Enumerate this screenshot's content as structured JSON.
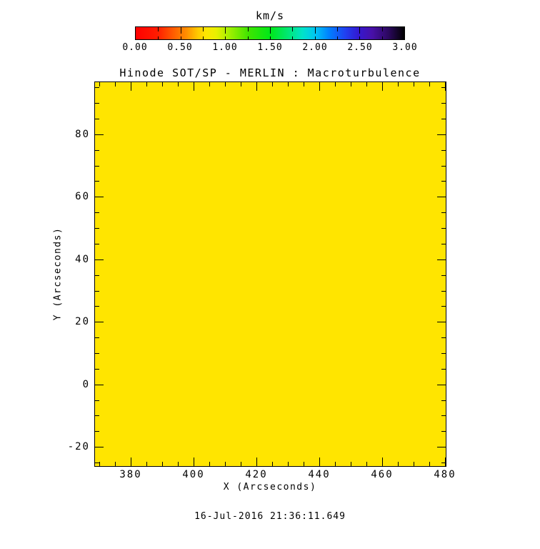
{
  "chart_data": {
    "type": "heatmap",
    "title": "Hinode SOT/SP - MERLIN : Macroturbulence",
    "xlabel": "X (Arcseconds)",
    "ylabel": "Y (Arcseconds)",
    "timestamp": "16-Jul-2016 21:36:11.649",
    "x_range": [
      368.4,
      480
    ],
    "y_range": [
      -25.9,
      96.9
    ],
    "x_major_ticks": [
      380,
      400,
      420,
      440,
      460,
      480
    ],
    "x_minor_step": 5,
    "y_major_ticks": [
      -20,
      0,
      20,
      40,
      60,
      80
    ],
    "y_minor_step": 5,
    "grid": false,
    "uniform_fill_color": "#FFE500",
    "estimated_uniform_value_km_s": 0.75,
    "colorbar": {
      "title": "km/s",
      "range": [
        0,
        3
      ],
      "tick_labels": [
        "0.00",
        "0.50",
        "1.00",
        "1.50",
        "2.00",
        "2.50",
        "3.00"
      ],
      "minor_step": 0.25,
      "gradient": [
        {
          "p": 0.0,
          "c": "#FF0000"
        },
        {
          "p": 0.08,
          "c": "#FF1C00"
        },
        {
          "p": 0.14,
          "c": "#FF5C00"
        },
        {
          "p": 0.19,
          "c": "#FF9000"
        },
        {
          "p": 0.23,
          "c": "#FFC800"
        },
        {
          "p": 0.26,
          "c": "#FFE600"
        },
        {
          "p": 0.3,
          "c": "#E8F000"
        },
        {
          "p": 0.35,
          "c": "#A0F000"
        },
        {
          "p": 0.42,
          "c": "#40E400"
        },
        {
          "p": 0.5,
          "c": "#00E818"
        },
        {
          "p": 0.57,
          "c": "#00E878"
        },
        {
          "p": 0.62,
          "c": "#00E4C8"
        },
        {
          "p": 0.67,
          "c": "#00C4F4"
        },
        {
          "p": 0.72,
          "c": "#0080FF"
        },
        {
          "p": 0.78,
          "c": "#2040F0"
        },
        {
          "p": 0.83,
          "c": "#3418D0"
        },
        {
          "p": 0.88,
          "c": "#4810A8"
        },
        {
          "p": 0.94,
          "c": "#2C0860"
        },
        {
          "p": 1.0,
          "c": "#000000"
        }
      ]
    }
  }
}
